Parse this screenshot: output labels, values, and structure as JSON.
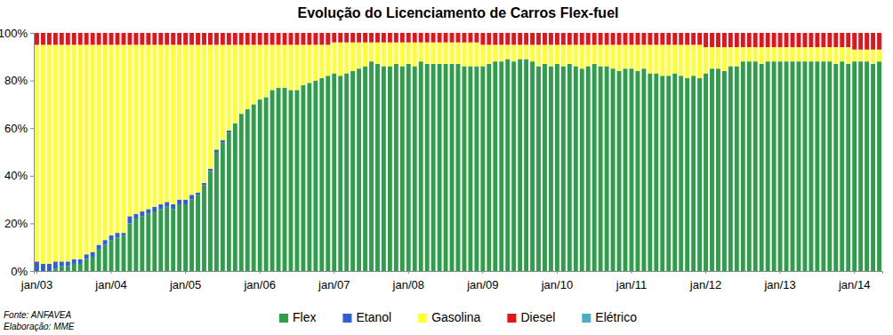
{
  "chart_data": {
    "type": "bar",
    "stacked": true,
    "title": "Evolução do Licenciamento  de Carros Flex-fuel",
    "annotations": [
      "Fonte: ANFAVEA",
      "Elaboração: MME"
    ],
    "legend": "bottom",
    "grid": false,
    "categories": [
      "jan/03",
      null,
      null,
      null,
      null,
      null,
      null,
      null,
      null,
      null,
      null,
      null,
      "jan/04",
      null,
      null,
      null,
      null,
      null,
      null,
      null,
      null,
      null,
      null,
      null,
      "jan/05",
      null,
      null,
      null,
      null,
      null,
      null,
      null,
      null,
      null,
      null,
      null,
      "jan/06",
      null,
      null,
      null,
      null,
      null,
      null,
      null,
      null,
      null,
      null,
      null,
      "jan/07",
      null,
      null,
      null,
      null,
      null,
      null,
      null,
      null,
      null,
      null,
      null,
      "jan/08",
      null,
      null,
      null,
      null,
      null,
      null,
      null,
      null,
      null,
      null,
      null,
      "jan/09",
      null,
      null,
      null,
      null,
      null,
      null,
      null,
      null,
      null,
      null,
      null,
      "jan/10",
      null,
      null,
      null,
      null,
      null,
      null,
      null,
      null,
      null,
      null,
      null,
      "jan/11",
      null,
      null,
      null,
      null,
      null,
      null,
      null,
      null,
      null,
      null,
      null,
      "jan/12",
      null,
      null,
      null,
      null,
      null,
      null,
      null,
      null,
      null,
      null,
      null,
      "jan/13",
      null,
      null,
      null,
      null,
      null,
      null,
      null,
      null,
      null,
      null,
      null,
      "jan/14",
      null,
      null,
      null,
      null
    ],
    "ylim": [
      0,
      100
    ],
    "yticks": [
      {
        "value": 0,
        "label": "0%"
      },
      {
        "value": 20,
        "label": "20%"
      },
      {
        "value": 40,
        "label": "40%"
      },
      {
        "value": 60,
        "label": "60%"
      },
      {
        "value": 80,
        "label": "80%"
      },
      {
        "value": 100,
        "label": "100%"
      }
    ],
    "series": [
      {
        "name": "Flex",
        "color": "#2f9e4a",
        "values": [
          0,
          0,
          0,
          1,
          2,
          2,
          3,
          3,
          5,
          6,
          9,
          11,
          13,
          14,
          15,
          20,
          22,
          23,
          24,
          25,
          26,
          27,
          26,
          28,
          28,
          30,
          32,
          36,
          42,
          50,
          54,
          58,
          62,
          66,
          68,
          70,
          72,
          73,
          76,
          77,
          77,
          76,
          76,
          78,
          79,
          80,
          81,
          82,
          83,
          82,
          83,
          84,
          85,
          86,
          88,
          87,
          86,
          86,
          87,
          86,
          87,
          86,
          88,
          87,
          87,
          87,
          87,
          87,
          87,
          86,
          86,
          86,
          86,
          87,
          88,
          88,
          89,
          88,
          89,
          89,
          88,
          86,
          87,
          86,
          87,
          86,
          87,
          86,
          85,
          86,
          87,
          86,
          86,
          85,
          84,
          85,
          85,
          84,
          85,
          83,
          83,
          82,
          82,
          83,
          82,
          81,
          82,
          81,
          83,
          85,
          85,
          84,
          86,
          86,
          88,
          88,
          88,
          87,
          88,
          88,
          88,
          88,
          88,
          88,
          88,
          88,
          88,
          88,
          88,
          87,
          88,
          87,
          88,
          88,
          88,
          87,
          88
        ]
      },
      {
        "name": "Etanol",
        "color": "#3060d0",
        "values": [
          4,
          3,
          3,
          3,
          2,
          2,
          2,
          2,
          2,
          2,
          2,
          2,
          2,
          2,
          1,
          3,
          2,
          2,
          2,
          2,
          2,
          2,
          2,
          2,
          2,
          2,
          1,
          1,
          1,
          1,
          1,
          1,
          0,
          0,
          0,
          0,
          0,
          0,
          0,
          0,
          0,
          0,
          0,
          0,
          0,
          0,
          0,
          0,
          0,
          0,
          0,
          0,
          0,
          0,
          0,
          0,
          0,
          0,
          0,
          0,
          0,
          0,
          0,
          0,
          0,
          0,
          0,
          0,
          0,
          0,
          0,
          0,
          0,
          0,
          0,
          0,
          0,
          0,
          0,
          0,
          0,
          0,
          0,
          0,
          0,
          0,
          0,
          0,
          0,
          0,
          0,
          0,
          0,
          0,
          0,
          0,
          0,
          0,
          0,
          0,
          0,
          0,
          0,
          0,
          0,
          0,
          0,
          0,
          0,
          0,
          0,
          0,
          0,
          0,
          0,
          0,
          0,
          0,
          0,
          0,
          0,
          0,
          0,
          0,
          0,
          0,
          0,
          0,
          0,
          0,
          0,
          0,
          0,
          0,
          0,
          0,
          0
        ]
      },
      {
        "name": "Gasolina",
        "color": "#ffff33",
        "values": [
          91,
          92,
          92,
          91,
          91,
          91,
          90,
          90,
          88,
          87,
          84,
          82,
          80,
          79,
          79,
          72,
          71,
          70,
          69,
          68,
          67,
          66,
          67,
          65,
          65,
          63,
          62,
          58,
          52,
          44,
          40,
          36,
          33,
          29,
          27,
          25,
          23,
          22,
          19,
          18,
          18,
          19,
          19,
          17,
          16,
          15,
          14,
          13,
          13,
          14,
          13,
          12,
          11,
          10,
          8,
          9,
          10,
          10,
          9,
          10,
          9,
          10,
          8,
          9,
          9,
          9,
          9,
          9,
          9,
          10,
          10,
          10,
          9,
          8,
          7,
          7,
          6,
          7,
          6,
          6,
          7,
          9,
          8,
          9,
          8,
          9,
          8,
          9,
          10,
          9,
          8,
          9,
          9,
          10,
          11,
          10,
          10,
          11,
          10,
          12,
          12,
          13,
          13,
          12,
          13,
          14,
          13,
          14,
          11,
          9,
          9,
          10,
          8,
          8,
          6,
          6,
          6,
          7,
          6,
          6,
          6,
          6,
          6,
          6,
          6,
          6,
          6,
          6,
          6,
          7,
          6,
          7,
          5,
          5,
          5,
          6,
          5
        ]
      },
      {
        "name": "Diesel",
        "color": "#e3141b",
        "values": [
          5,
          5,
          5,
          5,
          5,
          5,
          5,
          5,
          5,
          5,
          5,
          5,
          5,
          5,
          5,
          5,
          5,
          5,
          5,
          5,
          5,
          5,
          5,
          5,
          5,
          5,
          5,
          5,
          5,
          5,
          5,
          5,
          5,
          5,
          5,
          5,
          5,
          5,
          5,
          5,
          5,
          5,
          5,
          5,
          5,
          5,
          5,
          5,
          4,
          4,
          4,
          4,
          4,
          4,
          4,
          4,
          4,
          4,
          4,
          4,
          4,
          4,
          4,
          4,
          4,
          4,
          4,
          4,
          4,
          4,
          4,
          4,
          5,
          5,
          5,
          5,
          5,
          5,
          5,
          5,
          5,
          5,
          5,
          5,
          5,
          5,
          5,
          5,
          5,
          5,
          5,
          5,
          5,
          5,
          5,
          5,
          5,
          5,
          5,
          5,
          5,
          5,
          5,
          5,
          5,
          5,
          5,
          5,
          6,
          6,
          6,
          6,
          6,
          6,
          6,
          6,
          6,
          6,
          6,
          6,
          6,
          6,
          6,
          6,
          6,
          6,
          6,
          6,
          6,
          6,
          6,
          6,
          7,
          7,
          7,
          7,
          7
        ]
      },
      {
        "name": "Elétrico",
        "color": "#4bacc6",
        "values": [
          0,
          0,
          0,
          0,
          0,
          0,
          0,
          0,
          0,
          0,
          0,
          0,
          0,
          0,
          0,
          0,
          0,
          0,
          0,
          0,
          0,
          0,
          0,
          0,
          0,
          0,
          0,
          0,
          0,
          0,
          0,
          0,
          0,
          0,
          0,
          0,
          0,
          0,
          0,
          0,
          0,
          0,
          0,
          0,
          0,
          0,
          0,
          0,
          0,
          0,
          0,
          0,
          0,
          0,
          0,
          0,
          0,
          0,
          0,
          0,
          0,
          0,
          0,
          0,
          0,
          0,
          0,
          0,
          0,
          0,
          0,
          0,
          0,
          0,
          0,
          0,
          0,
          0,
          0,
          0,
          0,
          0,
          0,
          0,
          0,
          0,
          0,
          0,
          0,
          0,
          0,
          0,
          0,
          0,
          0,
          0,
          0,
          0,
          0,
          0,
          0,
          0,
          0,
          0,
          0,
          0,
          0,
          0,
          0,
          0,
          0,
          0,
          0,
          0,
          0,
          0,
          0,
          0,
          0,
          0,
          0,
          0,
          0,
          0,
          0,
          0,
          0,
          0,
          0,
          0,
          0,
          0,
          0,
          0,
          0,
          0,
          0
        ]
      }
    ]
  }
}
